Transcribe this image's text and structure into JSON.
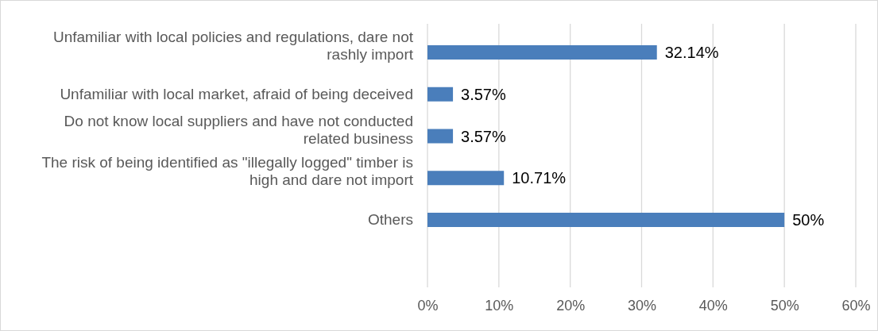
{
  "chart_data": {
    "type": "bar",
    "orientation": "horizontal",
    "categories": [
      "Unfamiliar with local policies and regulations, dare not rashly import",
      "Unfamiliar with local market, afraid of being deceived",
      "Do not know local suppliers and have not conducted related business",
      "The risk of being identified as \"illegally logged\" timber is high and dare not import",
      "Others"
    ],
    "values": [
      32.14,
      3.57,
      3.57,
      10.71,
      50
    ],
    "value_labels": [
      "32.14%",
      "3.57%",
      "3.57%",
      "10.71%",
      "50%"
    ],
    "color": "#4a7ebb",
    "xlim": [
      0,
      60
    ],
    "xticks": [
      {
        "value": 0,
        "label": "0%"
      },
      {
        "value": 10,
        "label": "10%"
      },
      {
        "value": 20,
        "label": "20%"
      },
      {
        "value": 30,
        "label": "30%"
      },
      {
        "value": 40,
        "label": "40%"
      },
      {
        "value": 50,
        "label": "50%"
      },
      {
        "value": 60,
        "label": "60%"
      }
    ],
    "grid": "x"
  }
}
